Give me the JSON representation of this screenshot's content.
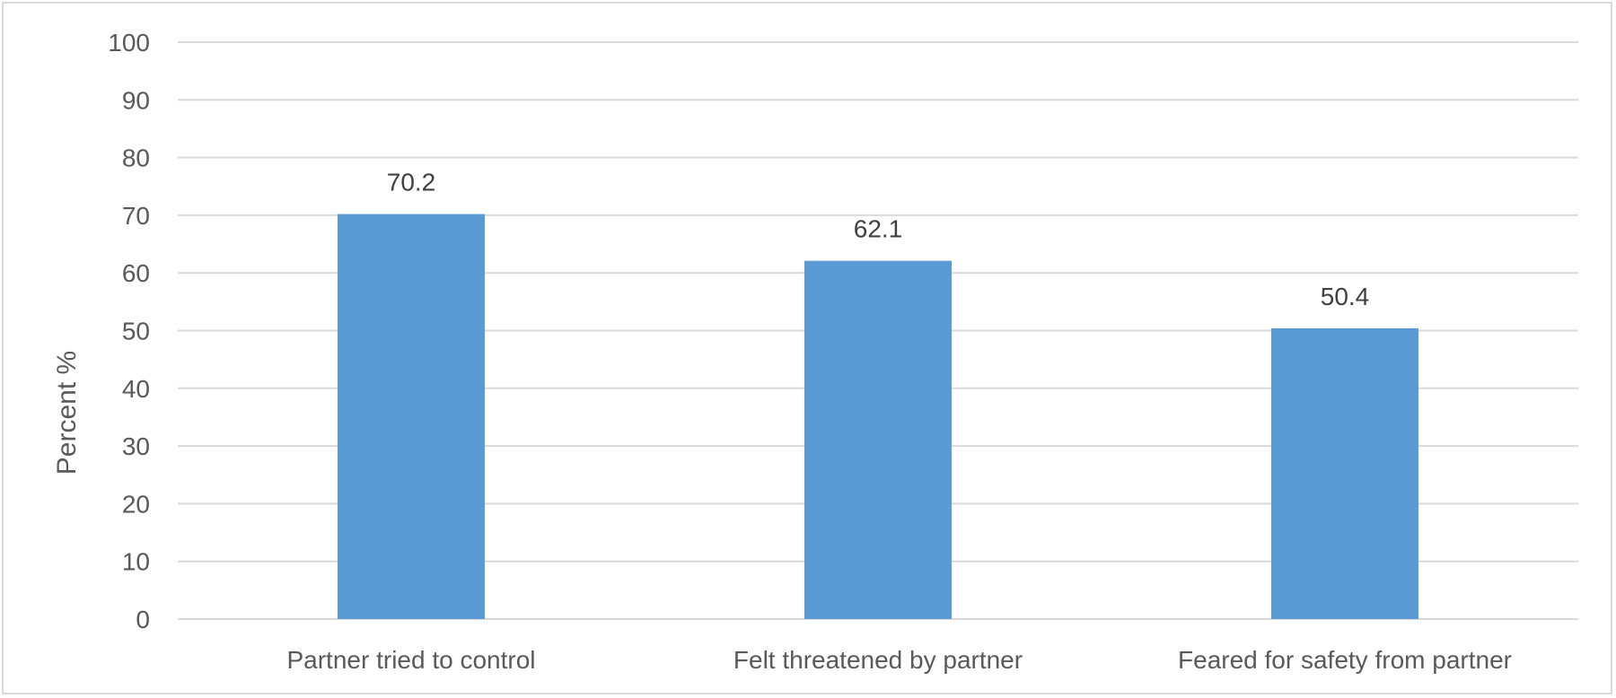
{
  "chart_data": {
    "type": "bar",
    "title": "",
    "xlabel": "",
    "ylabel": "Percent %",
    "categories": [
      "Partner tried to control",
      "Felt threatened by partner",
      "Feared for safety from partner"
    ],
    "values": [
      70.2,
      62.1,
      50.4
    ],
    "value_labels": [
      "70.2",
      "62.1",
      "50.4"
    ],
    "ylim": [
      0,
      100
    ],
    "yticks": [
      0,
      10,
      20,
      30,
      40,
      50,
      60,
      70,
      80,
      90,
      100
    ],
    "grid": true,
    "legend": "none",
    "bar_color": "#5b9bd5",
    "grid_color": "#d9d9d9"
  }
}
